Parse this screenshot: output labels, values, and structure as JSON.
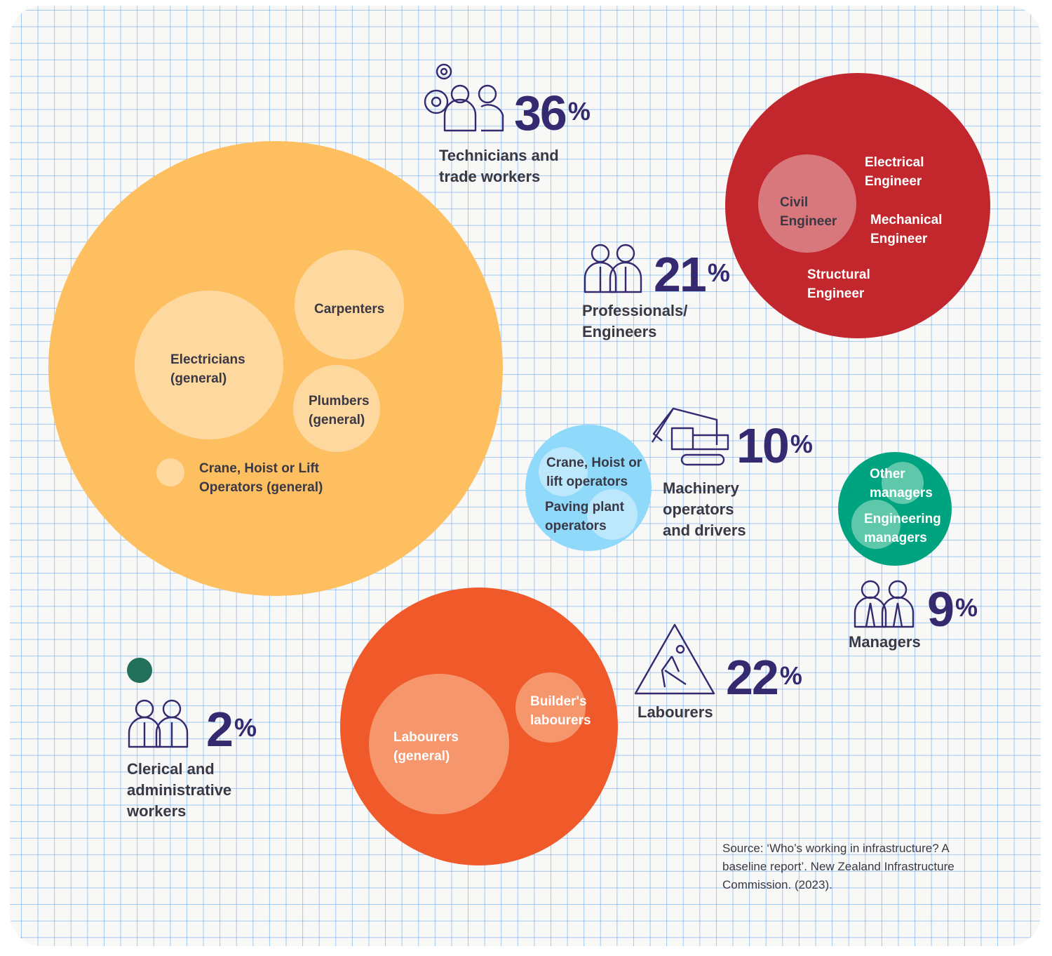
{
  "chart_data": {
    "type": "bubble",
    "colors": {
      "technicians": "#fdbf60",
      "professionals": "#c1272d",
      "machinery": "#8fd9fb",
      "managers": "#00a37f",
      "labourers": "#f0592a",
      "clerical": "#22705a",
      "icon": "#35296f"
    },
    "groups": [
      {
        "key": "technicians",
        "label": "Technicians and trade workers",
        "percent": "36",
        "icon": "gears-people-icon",
        "sub": [
          "Electricians (general)",
          "Carpenters",
          "Plumbers (general)",
          "Crane, Hoist or Lift Operators (general)"
        ]
      },
      {
        "key": "professionals",
        "label": "Professionals/ Engineers",
        "percent": "21",
        "icon": "professionals-icon",
        "sub": [
          "Civil Engineer",
          "Electrical Engineer",
          "Mechanical Engineer",
          "Structural Engineer"
        ]
      },
      {
        "key": "machinery",
        "label": "Machinery operators and drivers",
        "percent": "10",
        "icon": "excavator-icon",
        "sub": [
          "Crane, Hoist or lift operators",
          "Paving plant operators"
        ]
      },
      {
        "key": "managers",
        "label": "Managers",
        "percent": "9",
        "icon": "managers-icon",
        "sub": [
          "Other managers",
          "Engineering managers"
        ]
      },
      {
        "key": "labourers",
        "label": "Labourers",
        "percent": "22",
        "icon": "digging-sign-icon",
        "sub": [
          "Labourers (general)",
          "Builder's labourers"
        ]
      },
      {
        "key": "clerical",
        "label": "Clerical and administrative workers",
        "percent": "2",
        "icon": "clerical-icon",
        "sub": []
      }
    ],
    "percent_sign": "%",
    "source": "Source: ‘Who’s working in infrastructure? A baseline report’. New Zealand Infrastructure Commission. (2023)."
  }
}
